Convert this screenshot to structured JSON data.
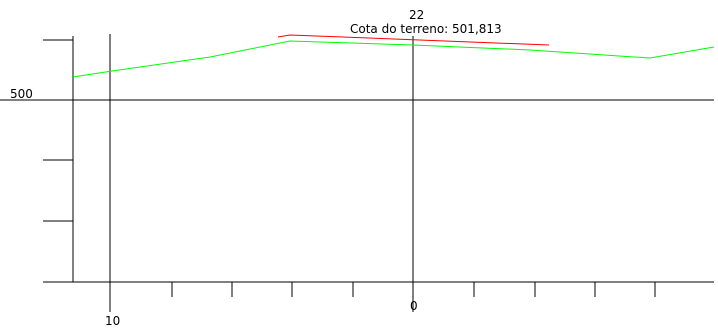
{
  "colors": {
    "background": "#ffffff",
    "axes": "#000000",
    "terrain_profile": "#00ff00",
    "highlight_segment": "#ff0000"
  },
  "labels": {
    "station_label": "22",
    "elevation_readout": "Cota do terreno: 501,813",
    "elevation_grid_label": "500",
    "x_tick_label_left": "10",
    "x_tick_label_center": "0"
  }
}
